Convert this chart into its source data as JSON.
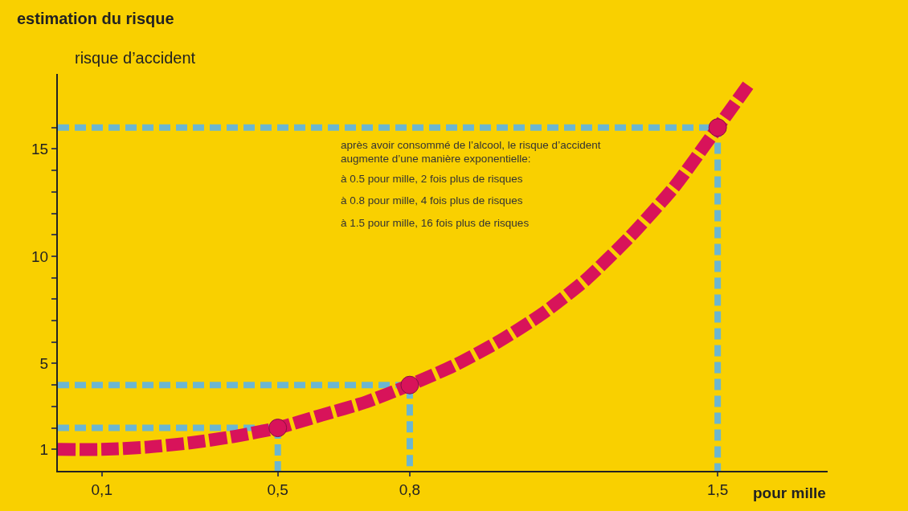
{
  "chart_data": {
    "type": "line",
    "title": "estimation du risque",
    "ylabel": "risque d’accident",
    "xlabel": "pour mille",
    "annotations": [
      "après avoir consommé de l’alcool, le risque d’accident",
      "augmente d’une manière exponentielle:",
      "à 0.5 pour mille, 2 fois plus de risques",
      "à 0.8 pour mille, 4 fois plus de risques",
      "à 1.5 pour mille, 16 fois plus de risques"
    ],
    "xlim": [
      0,
      1.75
    ],
    "xticks": [
      {
        "value": 0.1,
        "label": "0,1"
      },
      {
        "value": 0.5,
        "label": "0,5"
      },
      {
        "value": 0.8,
        "label": "0,8"
      },
      {
        "value": 1.5,
        "label": "1,5"
      }
    ],
    "ylim": [
      0,
      18.5
    ],
    "yticks": [
      1,
      {
        "value": 2,
        "label": null
      },
      {
        "value": 3,
        "label": null
      },
      {
        "value": 4,
        "label": null
      },
      5,
      {
        "value": 6,
        "label": null
      },
      {
        "value": 7,
        "label": null
      },
      {
        "value": 8,
        "label": null
      },
      {
        "value": 9,
        "label": null
      },
      10,
      {
        "value": 11,
        "label": null
      },
      {
        "value": 12,
        "label": null
      },
      {
        "value": 13,
        "label": null
      },
      {
        "value": 14,
        "label": null
      },
      15,
      {
        "value": 16,
        "label": null
      }
    ],
    "grid": false,
    "series": [
      {
        "color": "#6cb6d0",
        "line_style": "dashed",
        "marker": "none",
        "x": [
          0,
          0.5,
          0.5
        ],
        "values": [
          2,
          2,
          0
        ]
      },
      {
        "color": "#6cb6d0",
        "line_style": "dashed",
        "marker": "none",
        "x": [
          0,
          0.8,
          0.8
        ],
        "values": [
          4,
          4,
          0
        ]
      },
      {
        "color": "#6cb6d0",
        "line_style": "dashed",
        "marker": "none",
        "x": [
          0,
          1.5,
          1.5
        ],
        "values": [
          16,
          16,
          0
        ]
      },
      {
        "color": "#d8135a",
        "line_style": "dashed",
        "marker": "none",
        "x": [
          0,
          0.1,
          0.2,
          0.3,
          0.4,
          0.5,
          0.6,
          0.7,
          0.8,
          0.9,
          1.0,
          1.1,
          1.2,
          1.3,
          1.4,
          1.5,
          1.57
        ],
        "values": [
          1,
          1.0,
          1.1,
          1.3,
          1.6,
          2,
          2.6,
          3.2,
          4,
          4.9,
          6,
          7.3,
          8.9,
          10.9,
          13.2,
          16,
          18
        ]
      },
      {
        "type": "scatter",
        "color": "#d8135a",
        "marker": "circle",
        "x": [
          0.5,
          0.8,
          1.5
        ],
        "values": [
          2,
          4,
          16
        ]
      }
    ]
  }
}
